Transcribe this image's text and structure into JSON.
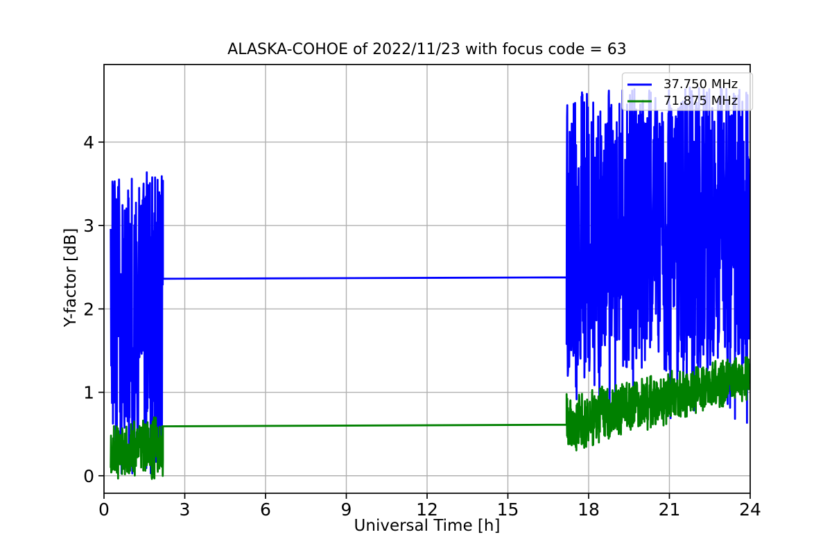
{
  "figure": {
    "background": "#ffffff"
  },
  "chart_data": {
    "type": "line",
    "title": "ALASKA-COHOE of 2022/11/23 with focus code = 63",
    "xlabel": "Universal Time [h]",
    "ylabel": "Y-factor [dB]",
    "xlim": [
      0,
      24
    ],
    "ylim": [
      -0.21,
      4.93
    ],
    "xticks": [
      0,
      3,
      6,
      9,
      12,
      15,
      18,
      21,
      24
    ],
    "yticks": [
      0,
      1,
      2,
      3,
      4
    ],
    "grid": true,
    "colors": {
      "grid": "#b0b0b0",
      "spine": "#000000",
      "background": "#ffffff",
      "text": "#000000"
    },
    "legend": {
      "position": "upper right",
      "entries": [
        {
          "label": "37.750 MHz",
          "color": "#0000ff"
        },
        {
          "label": "71.875 MHz",
          "color": "#008000"
        }
      ]
    },
    "series": [
      {
        "name": "37.750 MHz",
        "color": "#0000ff",
        "segments": [
          {
            "kind": "noise",
            "h0": 0.25,
            "h1": 2.19,
            "lo0": 0.42,
            "lo1": 0.5,
            "hi0": 2.78,
            "hi1": 2.92,
            "spike_hi0": 3.72,
            "spike_hi1": 3.6,
            "p_hi": 0.3,
            "spike_lo0": 0.02,
            "spike_lo1": 0.02,
            "p_lo": 0.05
          },
          {
            "kind": "flat",
            "h0": 2.19,
            "h1": 17.18,
            "v0": 2.362,
            "v1": 2.378
          },
          {
            "kind": "noise",
            "h0": 17.18,
            "h1": 24.0,
            "lo0": 1.15,
            "lo1": 1.32,
            "hi0": 4.2,
            "hi1": 4.32,
            "spike_hi0": 4.6,
            "spike_hi1": 4.7,
            "p_hi": 0.15,
            "spike_lo0": 0.75,
            "spike_lo1": 0.6,
            "p_lo": 0.02
          }
        ]
      },
      {
        "name": "71.875 MHz",
        "color": "#008000",
        "segments": [
          {
            "kind": "noise",
            "h0": 0.25,
            "h1": 2.19,
            "lo0": 0.02,
            "lo1": 0.08,
            "hi0": 0.5,
            "hi1": 0.66,
            "spike_hi0": 0.6,
            "spike_hi1": 0.74,
            "p_hi": 0.1,
            "spike_lo0": -0.045,
            "spike_lo1": -0.04,
            "p_lo": 0.06
          },
          {
            "kind": "flat",
            "h0": 2.19,
            "h1": 17.18,
            "v0": 0.593,
            "v1": 0.612
          },
          {
            "kind": "noise",
            "h0": 17.18,
            "h1": 24.0,
            "lo0": 0.34,
            "lo1": 0.98,
            "hi0": 0.9,
            "hi1": 1.4,
            "spike_hi0": 0.98,
            "spike_hi1": 1.47,
            "p_hi": 0.08,
            "spike_lo0": 0.27,
            "spike_lo1": 0.9,
            "p_lo": 0.04
          }
        ]
      }
    ]
  }
}
